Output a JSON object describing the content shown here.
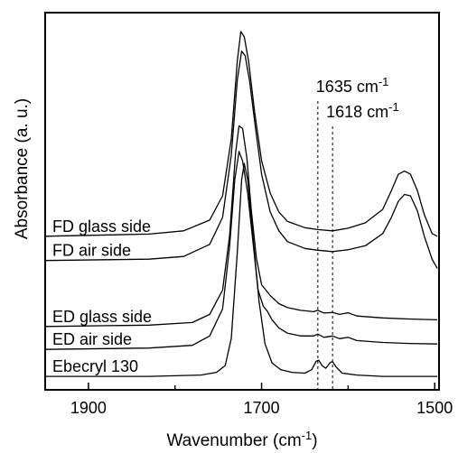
{
  "chart_data": {
    "type": "line",
    "xlabel": "Wavenumber (cm",
    "xlabel_sup": "-1",
    "xlabel_end": ")",
    "ylabel": "Absorbance (a. u.)",
    "xlim": [
      1950,
      1495
    ],
    "x_reversed": true,
    "xticks": [
      {
        "value": 1900,
        "label": "1900"
      },
      {
        "value": 1700,
        "label": "1700"
      },
      {
        "value": 1500,
        "label": "1500"
      }
    ],
    "x_minor_ticks": [
      1800,
      1600
    ],
    "y_ticks_shown": false,
    "grid": false,
    "annotations": [
      {
        "x": 1635,
        "text": "1635 cm",
        "sup": "-1"
      },
      {
        "x": 1618,
        "text": "1618 cm",
        "sup": "-1"
      }
    ],
    "series": [
      {
        "name": "FD glass side",
        "points": [
          [
            1950,
            0.72
          ],
          [
            1830,
            0.728
          ],
          [
            1790,
            0.74
          ],
          [
            1760,
            0.78
          ],
          [
            1745,
            0.87
          ],
          [
            1735,
            1.08
          ],
          [
            1728,
            1.37
          ],
          [
            1724,
            1.48
          ],
          [
            1720,
            1.46
          ],
          [
            1715,
            1.37
          ],
          [
            1708,
            1.18
          ],
          [
            1700,
            1.0
          ],
          [
            1690,
            0.88
          ],
          [
            1680,
            0.81
          ],
          [
            1670,
            0.775
          ],
          [
            1650,
            0.752
          ],
          [
            1635,
            0.745
          ],
          [
            1618,
            0.74
          ],
          [
            1600,
            0.75
          ],
          [
            1580,
            0.77
          ],
          [
            1560,
            0.82
          ],
          [
            1550,
            0.89
          ],
          [
            1542,
            0.95
          ],
          [
            1535,
            0.962
          ],
          [
            1528,
            0.95
          ],
          [
            1520,
            0.89
          ],
          [
            1512,
            0.8
          ],
          [
            1503,
            0.73
          ],
          [
            1497,
            0.72
          ]
        ]
      },
      {
        "name": "FD air side",
        "points": [
          [
            1950,
            0.63
          ],
          [
            1830,
            0.635
          ],
          [
            1790,
            0.645
          ],
          [
            1760,
            0.69
          ],
          [
            1745,
            0.79
          ],
          [
            1735,
            1.02
          ],
          [
            1728,
            1.3
          ],
          [
            1723,
            1.407
          ],
          [
            1719,
            1.39
          ],
          [
            1714,
            1.3
          ],
          [
            1707,
            1.12
          ],
          [
            1700,
            0.95
          ],
          [
            1690,
            0.81
          ],
          [
            1680,
            0.74
          ],
          [
            1670,
            0.7
          ],
          [
            1650,
            0.675
          ],
          [
            1635,
            0.668
          ],
          [
            1618,
            0.663
          ],
          [
            1600,
            0.67
          ],
          [
            1580,
            0.685
          ],
          [
            1560,
            0.73
          ],
          [
            1550,
            0.79
          ],
          [
            1542,
            0.85
          ],
          [
            1535,
            0.875
          ],
          [
            1528,
            0.87
          ],
          [
            1520,
            0.815
          ],
          [
            1512,
            0.72
          ],
          [
            1503,
            0.635
          ],
          [
            1497,
            0.6
          ]
        ]
      },
      {
        "name": "ED glass side",
        "points": [
          [
            1950,
            0.385
          ],
          [
            1830,
            0.39
          ],
          [
            1780,
            0.4
          ],
          [
            1760,
            0.43
          ],
          [
            1745,
            0.52
          ],
          [
            1737,
            0.72
          ],
          [
            1730,
            1.03
          ],
          [
            1726,
            1.13
          ],
          [
            1722,
            1.12
          ],
          [
            1717,
            1.01
          ],
          [
            1712,
            0.82
          ],
          [
            1706,
            0.64
          ],
          [
            1700,
            0.54
          ],
          [
            1695,
            0.52
          ],
          [
            1690,
            0.5
          ],
          [
            1680,
            0.47
          ],
          [
            1670,
            0.455
          ],
          [
            1655,
            0.445
          ],
          [
            1640,
            0.44
          ],
          [
            1635,
            0.445
          ],
          [
            1628,
            0.435
          ],
          [
            1618,
            0.437
          ],
          [
            1610,
            0.43
          ],
          [
            1600,
            0.436
          ],
          [
            1590,
            0.424
          ],
          [
            1560,
            0.417
          ],
          [
            1530,
            0.413
          ],
          [
            1497,
            0.41
          ]
        ]
      },
      {
        "name": "ED air side",
        "points": [
          [
            1950,
            0.3
          ],
          [
            1830,
            0.305
          ],
          [
            1780,
            0.315
          ],
          [
            1760,
            0.35
          ],
          [
            1745,
            0.45
          ],
          [
            1737,
            0.68
          ],
          [
            1731,
            0.93
          ],
          [
            1726,
            1.035
          ],
          [
            1722,
            1.0
          ],
          [
            1716,
            0.88
          ],
          [
            1710,
            0.7
          ],
          [
            1704,
            0.52
          ],
          [
            1698,
            0.46
          ],
          [
            1693,
            0.44
          ],
          [
            1688,
            0.41
          ],
          [
            1680,
            0.38
          ],
          [
            1670,
            0.36
          ],
          [
            1655,
            0.35
          ],
          [
            1640,
            0.35
          ],
          [
            1635,
            0.357
          ],
          [
            1628,
            0.345
          ],
          [
            1618,
            0.35
          ],
          [
            1610,
            0.34
          ],
          [
            1600,
            0.345
          ],
          [
            1590,
            0.333
          ],
          [
            1560,
            0.326
          ],
          [
            1530,
            0.322
          ],
          [
            1497,
            0.32
          ]
        ]
      },
      {
        "name": "Ebecryl 130",
        "points": [
          [
            1950,
            0.2
          ],
          [
            1830,
            0.2
          ],
          [
            1770,
            0.205
          ],
          [
            1752,
            0.215
          ],
          [
            1742,
            0.24
          ],
          [
            1735,
            0.34
          ],
          [
            1728,
            0.66
          ],
          [
            1723,
            0.93
          ],
          [
            1720,
            0.99
          ],
          [
            1716,
            0.93
          ],
          [
            1710,
            0.72
          ],
          [
            1703,
            0.48
          ],
          [
            1696,
            0.32
          ],
          [
            1688,
            0.25
          ],
          [
            1678,
            0.225
          ],
          [
            1665,
            0.215
          ],
          [
            1650,
            0.212
          ],
          [
            1642,
            0.225
          ],
          [
            1637,
            0.256
          ],
          [
            1634,
            0.26
          ],
          [
            1630,
            0.24
          ],
          [
            1626,
            0.23
          ],
          [
            1621,
            0.25
          ],
          [
            1618,
            0.255
          ],
          [
            1614,
            0.235
          ],
          [
            1607,
            0.212
          ],
          [
            1590,
            0.205
          ],
          [
            1560,
            0.2
          ],
          [
            1530,
            0.2
          ],
          [
            1497,
            0.2
          ]
        ]
      }
    ]
  }
}
